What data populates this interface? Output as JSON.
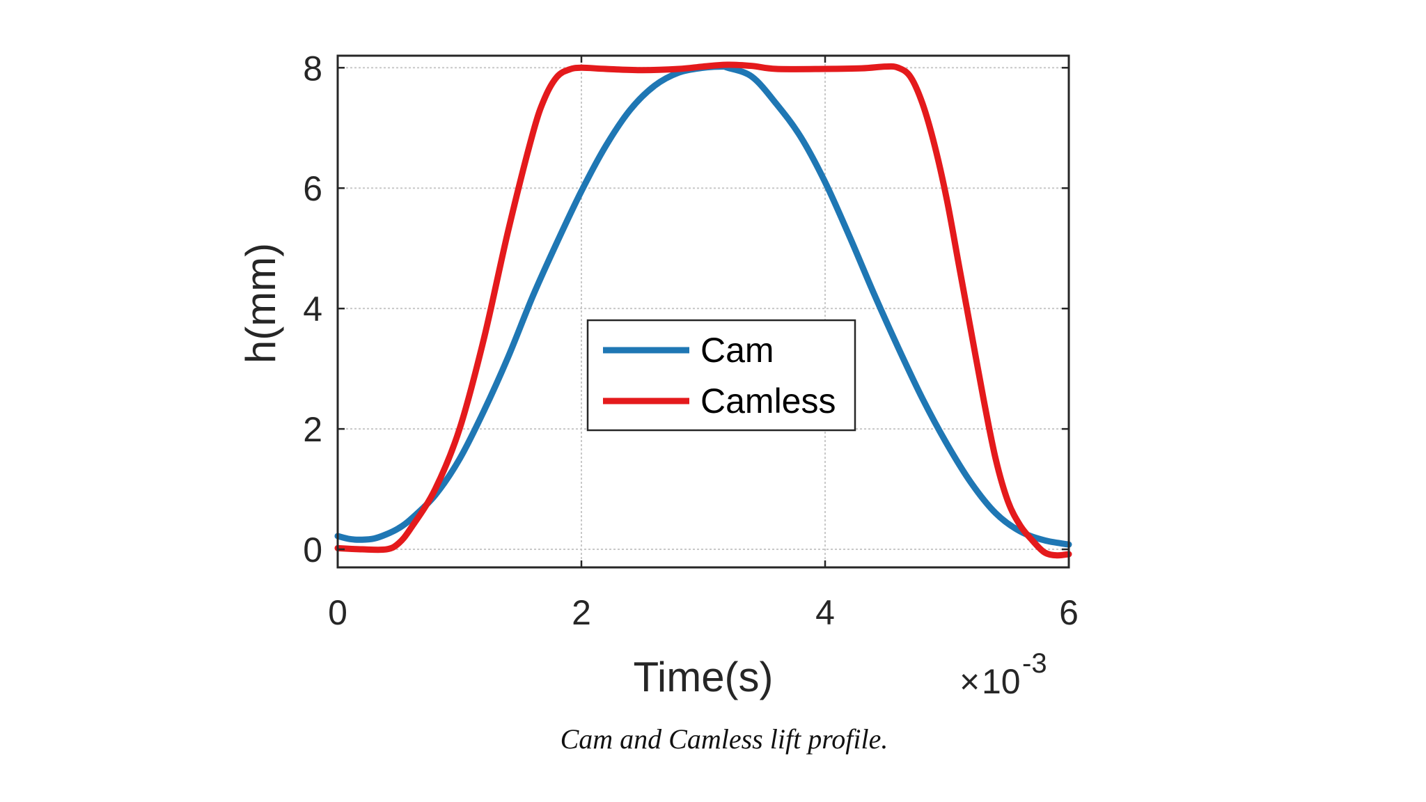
{
  "chart_data": {
    "type": "line",
    "xlabel": "Time(s)",
    "ylabel": "h(mm)",
    "x_exponent": {
      "times": "×",
      "base": "10",
      "power": "-3"
    },
    "xlim": [
      0,
      6
    ],
    "ylim": [
      -0.3,
      8.2
    ],
    "xticks": [
      "0",
      "2",
      "4",
      "6"
    ],
    "yticks": [
      "0",
      "2",
      "4",
      "6",
      "8"
    ],
    "grid": true,
    "legend_position": "center",
    "series": [
      {
        "name": "Cam",
        "color": "#1f77b4",
        "x": [
          0,
          0.1,
          0.2,
          0.3,
          0.4,
          0.5,
          0.6,
          0.8,
          1.0,
          1.2,
          1.4,
          1.6,
          1.8,
          2.0,
          2.2,
          2.4,
          2.6,
          2.8,
          3.0,
          3.15,
          3.2,
          3.4,
          3.6,
          3.8,
          4.0,
          4.2,
          4.4,
          4.6,
          4.8,
          5.0,
          5.2,
          5.4,
          5.6,
          5.8,
          6.0
        ],
        "y": [
          0.22,
          0.17,
          0.16,
          0.18,
          0.25,
          0.35,
          0.5,
          0.9,
          1.5,
          2.3,
          3.2,
          4.2,
          5.1,
          5.95,
          6.7,
          7.3,
          7.7,
          7.92,
          8.0,
          8.02,
          8.0,
          7.85,
          7.4,
          6.85,
          6.1,
          5.2,
          4.25,
          3.35,
          2.5,
          1.75,
          1.1,
          0.6,
          0.3,
          0.15,
          0.08
        ]
      },
      {
        "name": "Camless",
        "color": "#e41a1c",
        "x": [
          0,
          0.2,
          0.4,
          0.5,
          0.6,
          0.8,
          1.0,
          1.2,
          1.4,
          1.6,
          1.7,
          1.8,
          1.9,
          2.0,
          2.2,
          2.5,
          2.8,
          3.0,
          3.2,
          3.4,
          3.6,
          4.0,
          4.3,
          4.5,
          4.6,
          4.7,
          4.8,
          4.9,
          5.0,
          5.1,
          5.2,
          5.3,
          5.4,
          5.5,
          5.6,
          5.7,
          5.8,
          5.9,
          6.0
        ],
        "y": [
          0.02,
          0.0,
          0.0,
          0.1,
          0.35,
          1.0,
          2.0,
          3.5,
          5.3,
          6.9,
          7.5,
          7.85,
          7.97,
          8.0,
          7.98,
          7.96,
          7.98,
          8.02,
          8.05,
          8.03,
          7.98,
          7.98,
          7.99,
          8.02,
          8.0,
          7.85,
          7.4,
          6.7,
          5.8,
          4.7,
          3.6,
          2.5,
          1.5,
          0.8,
          0.4,
          0.15,
          -0.05,
          -0.1,
          -0.08
        ]
      }
    ]
  },
  "caption": "Cam and Camless lift profile."
}
